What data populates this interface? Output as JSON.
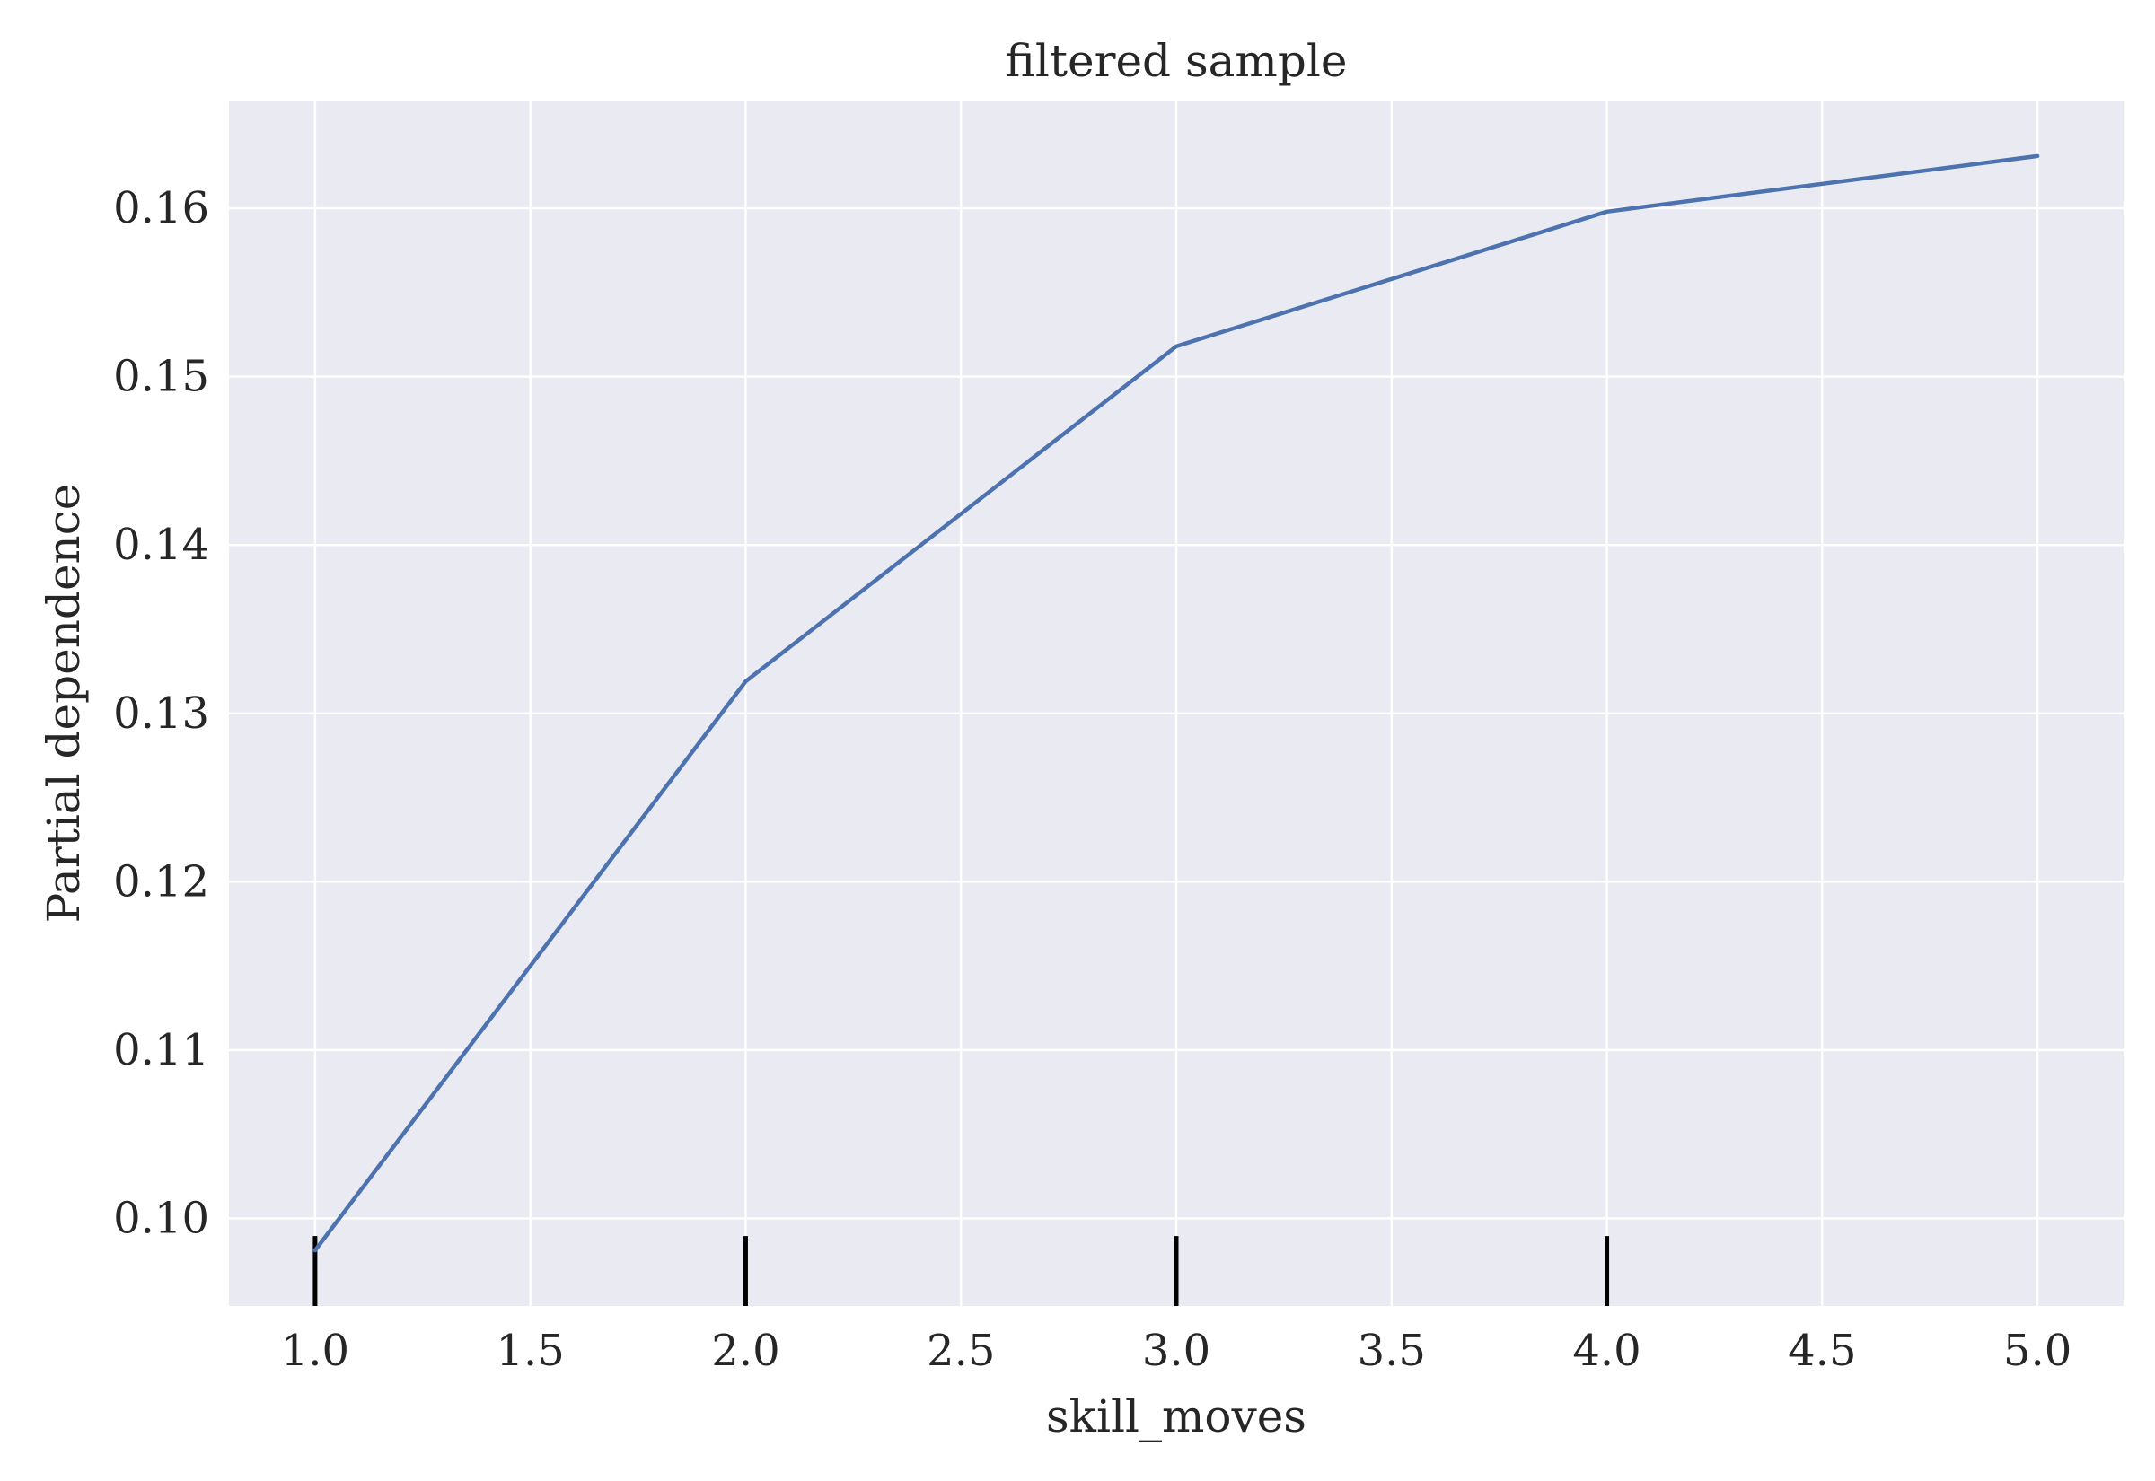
{
  "chart_data": {
    "type": "line",
    "title": "filtered sample",
    "xlabel": "skill_moves",
    "ylabel": "Partial dependence",
    "xlim": [
      0.8,
      5.2
    ],
    "ylim": [
      0.0948,
      0.1664
    ],
    "x_ticks": [
      1.0,
      1.5,
      2.0,
      2.5,
      3.0,
      3.5,
      4.0,
      4.5,
      5.0
    ],
    "x_tick_labels": [
      "1.0",
      "1.5",
      "2.0",
      "2.5",
      "3.0",
      "3.5",
      "4.0",
      "4.5",
      "5.0"
    ],
    "y_ticks": [
      0.1,
      0.11,
      0.12,
      0.13,
      0.14,
      0.15,
      0.16
    ],
    "y_tick_labels": [
      "0.10",
      "0.11",
      "0.12",
      "0.13",
      "0.14",
      "0.15",
      "0.16"
    ],
    "grid": true,
    "series": [
      {
        "color": "#4c72b0",
        "x": [
          1,
          2,
          3,
          4,
          5
        ],
        "y": [
          0.0981,
          0.1319,
          0.1518,
          0.1598,
          0.1631
        ]
      }
    ],
    "rug": {
      "x": [
        1,
        2,
        3,
        4
      ],
      "color": "#000000"
    }
  },
  "colors": {
    "plot_background": "#eaeaf2",
    "grid": "#ffffff",
    "line": "#4c72b0",
    "text": "#262626"
  }
}
